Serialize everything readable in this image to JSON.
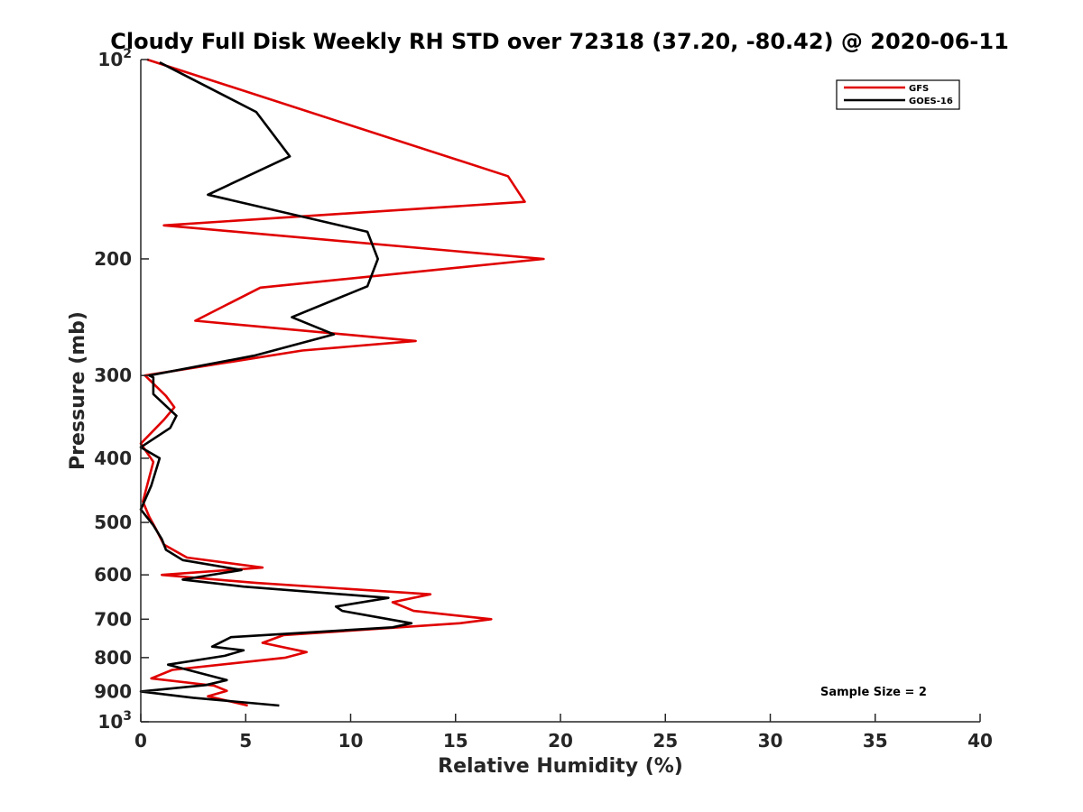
{
  "chart_data": {
    "type": "line",
    "title": "Cloudy Full Disk Weekly RH STD over 72318 (37.20, -80.42) @ 2020-06-11",
    "xlabel": "Relative Humidity (%)",
    "ylabel": "Pressure (mb)",
    "xlim": [
      0,
      40
    ],
    "ylim": [
      100,
      1000
    ],
    "yscale": "log",
    "y_reversed": true,
    "xticks": [
      0,
      5,
      10,
      15,
      20,
      25,
      30,
      35,
      40
    ],
    "xtick_labels": [
      "0",
      "5",
      "10",
      "15",
      "20",
      "25",
      "30",
      "35",
      "40"
    ],
    "yticks": [
      {
        "value": 100,
        "base": "10",
        "exp": "2"
      },
      {
        "value": 200,
        "label": "200"
      },
      {
        "value": 300,
        "label": "300"
      },
      {
        "value": 400,
        "label": "400"
      },
      {
        "value": 500,
        "label": "500"
      },
      {
        "value": 600,
        "label": "600"
      },
      {
        "value": 700,
        "label": "700"
      },
      {
        "value": 800,
        "label": "800"
      },
      {
        "value": 900,
        "label": "900"
      },
      {
        "value": 1000,
        "base": "10",
        "exp": "3"
      }
    ],
    "legend": {
      "position": "top-right"
    },
    "annotation": "Sample Size = 2",
    "series": [
      {
        "name": "GFS",
        "color": "#e00000",
        "points": [
          [
            0.3,
            100
          ],
          [
            17.5,
            150
          ],
          [
            18.3,
            164
          ],
          [
            1.1,
            178
          ],
          [
            19.2,
            200
          ],
          [
            5.7,
            221
          ],
          [
            2.6,
            248
          ],
          [
            13.1,
            266
          ],
          [
            7.7,
            275
          ],
          [
            0.2,
            300
          ],
          [
            1.2,
            322
          ],
          [
            1.6,
            335
          ],
          [
            1.1,
            350
          ],
          [
            0.0,
            380
          ],
          [
            0.6,
            405
          ],
          [
            0.1,
            465
          ],
          [
            0.4,
            490
          ],
          [
            0.7,
            510
          ],
          [
            1.1,
            540
          ],
          [
            2.2,
            565
          ],
          [
            5.8,
            585
          ],
          [
            1.0,
            600
          ],
          [
            5.5,
            617
          ],
          [
            13.8,
            642
          ],
          [
            12.0,
            660
          ],
          [
            13.0,
            680
          ],
          [
            16.7,
            700
          ],
          [
            15.2,
            710
          ],
          [
            6.8,
            740
          ],
          [
            5.8,
            760
          ],
          [
            7.9,
            785
          ],
          [
            6.9,
            800
          ],
          [
            1.5,
            835
          ],
          [
            0.5,
            860
          ],
          [
            3.5,
            882
          ],
          [
            4.1,
            898
          ],
          [
            3.2,
            915
          ],
          [
            5.1,
            945
          ]
        ]
      },
      {
        "name": "GOES-16",
        "color": "#000000",
        "points": [
          [
            0.9,
            101
          ],
          [
            5.5,
            120
          ],
          [
            7.1,
            140
          ],
          [
            3.2,
            160
          ],
          [
            10.8,
            182
          ],
          [
            11.3,
            200
          ],
          [
            10.8,
            220
          ],
          [
            7.2,
            245
          ],
          [
            9.2,
            260
          ],
          [
            5.4,
            280
          ],
          [
            0.4,
            300
          ],
          [
            0.6,
            302
          ],
          [
            0.6,
            320
          ],
          [
            1.7,
            345
          ],
          [
            1.4,
            360
          ],
          [
            0.0,
            385
          ],
          [
            0.9,
            400
          ],
          [
            0.5,
            440
          ],
          [
            0.0,
            478
          ],
          [
            0.6,
            505
          ],
          [
            1.0,
            530
          ],
          [
            1.2,
            550
          ],
          [
            2.0,
            570
          ],
          [
            4.8,
            590
          ],
          [
            2.0,
            610
          ],
          [
            4.9,
            625
          ],
          [
            11.8,
            650
          ],
          [
            9.3,
            670
          ],
          [
            9.6,
            680
          ],
          [
            12.9,
            710
          ],
          [
            12.0,
            720
          ],
          [
            4.3,
            745
          ],
          [
            3.4,
            770
          ],
          [
            4.9,
            780
          ],
          [
            4.0,
            795
          ],
          [
            1.3,
            820
          ],
          [
            4.1,
            865
          ],
          [
            3.1,
            880
          ],
          [
            0.0,
            900
          ],
          [
            2.5,
            920
          ],
          [
            6.6,
            945
          ]
        ]
      }
    ]
  }
}
